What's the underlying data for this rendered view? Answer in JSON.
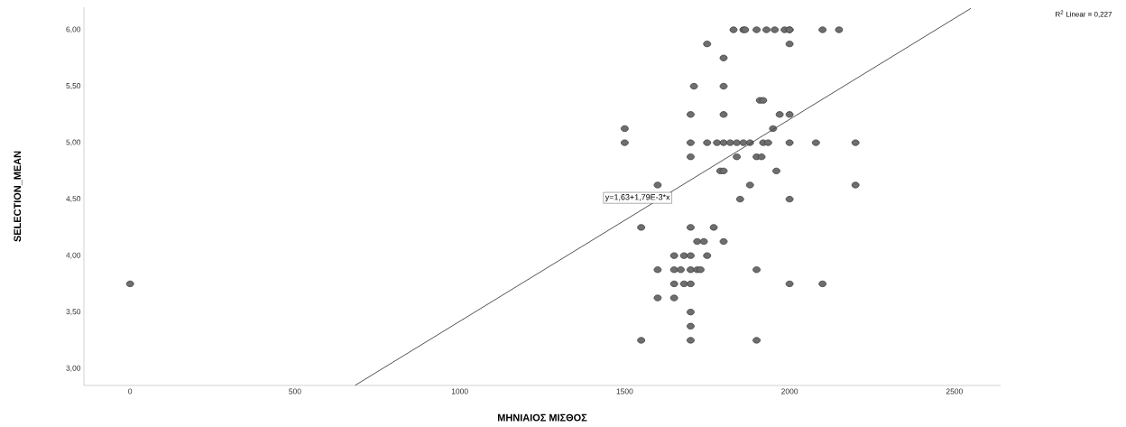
{
  "chart_data": {
    "type": "scatter",
    "xlabel": "ΜΗΝΙΑΙΟΣ ΜΙΣΘΟΣ",
    "ylabel": "SELECTION_MEAN",
    "xlim": [
      -140,
      2640
    ],
    "ylim": [
      2.85,
      6.2
    ],
    "xticks": [
      0,
      500,
      1000,
      1500,
      2000,
      2500
    ],
    "yticks": [
      {
        "value": 3,
        "label": "3,00"
      },
      {
        "value": 3.5,
        "label": "3,50"
      },
      {
        "value": 4,
        "label": "4,00"
      },
      {
        "value": 4.5,
        "label": "4,50"
      },
      {
        "value": 5,
        "label": "5,00"
      },
      {
        "value": 5.5,
        "label": "5,50"
      },
      {
        "value": 6,
        "label": "6,00"
      }
    ],
    "grid": false,
    "annotations": [
      "R$^{2}$ Linear = 0,227",
      "y=1,63+1,79E-3*x"
    ],
    "series": [
      {
        "color": "#6e6e6e",
        "marker": "circle",
        "x": [
          1830,
          1860,
          1865,
          1900,
          1930,
          1955,
          1985,
          2000,
          2000,
          2100,
          2150,
          1750,
          2000,
          1800,
          1710,
          1800,
          1910,
          1920,
          1700,
          1800,
          1970,
          2000,
          1500,
          1950,
          1500,
          1700,
          1750,
          1780,
          1800,
          1820,
          1840,
          1860,
          1880,
          1920,
          1935,
          2000,
          2080,
          2200,
          1700,
          1840,
          1900,
          1915,
          1790,
          1800,
          1960,
          1600,
          1880,
          2200,
          1850,
          2000,
          1550,
          1700,
          1770,
          1720,
          1740,
          1800,
          1650,
          1680,
          1700,
          1750,
          1600,
          1650,
          1670,
          1700,
          1720,
          1730,
          1900,
          0,
          1650,
          1680,
          1700,
          2000,
          2100,
          1600,
          1650,
          1700,
          1700,
          1550,
          1700,
          1900
        ],
        "values": [
          6,
          6,
          6,
          6,
          6,
          6,
          6,
          6,
          6,
          6,
          6,
          5.875,
          5.875,
          5.75,
          5.5,
          5.5,
          5.375,
          5.375,
          5.25,
          5.25,
          5.25,
          5.25,
          5.125,
          5.125,
          5,
          5,
          5,
          5,
          5,
          5,
          5,
          5,
          5,
          5,
          5,
          5,
          5,
          5,
          4.875,
          4.875,
          4.875,
          4.875,
          4.75,
          4.75,
          4.75,
          4.625,
          4.625,
          4.625,
          4.5,
          4.5,
          4.25,
          4.25,
          4.25,
          4.125,
          4.125,
          4.125,
          4,
          4,
          4,
          4,
          3.875,
          3.875,
          3.875,
          3.875,
          3.875,
          3.875,
          3.875,
          3.75,
          3.75,
          3.75,
          3.75,
          3.75,
          3.75,
          3.625,
          3.625,
          3.5,
          3.375,
          3.25,
          3.25,
          3.25
        ]
      },
      {
        "type": "line",
        "color": "#404040",
        "line_style": "solid",
        "x": [
          682,
          2550
        ],
        "values": [
          2.85,
          6.19
        ]
      }
    ]
  }
}
